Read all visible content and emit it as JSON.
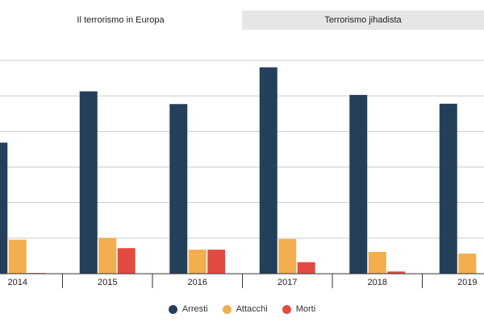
{
  "tabs": [
    {
      "label": "Il terrorismo in Europa",
      "active": true
    },
    {
      "label": "Terrorismo jihadista",
      "active": false
    }
  ],
  "colors": {
    "arresti": "#243f5a",
    "attacchi": "#f2ae4f",
    "morti": "#e34b42",
    "gridline": "#cccccc",
    "axis": "#333333"
  },
  "chart_data": {
    "type": "bar",
    "categories": [
      "2014",
      "2015",
      "2016",
      "2017",
      "2018",
      "2019"
    ],
    "series": [
      {
        "name": "Arresti",
        "values": [
          774,
          1077,
          1002,
          1219,
          1056,
          1004
        ]
      },
      {
        "name": "Attacchi",
        "values": [
          201,
          211,
          142,
          205,
          129,
          119
        ]
      },
      {
        "name": "Morti",
        "values": [
          4,
          151,
          142,
          68,
          13,
          0
        ]
      }
    ],
    "ylim": [
      0,
      1260
    ],
    "grid": true,
    "legend_position": "bottom"
  }
}
